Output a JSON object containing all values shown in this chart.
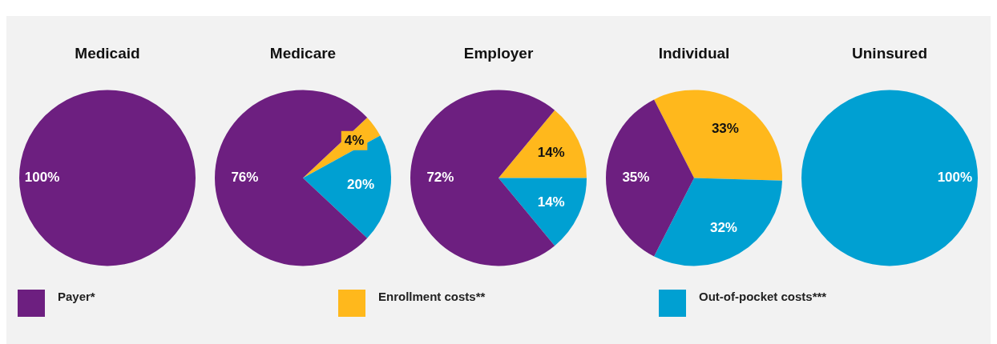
{
  "chart_data": [
    {
      "type": "pie",
      "title": "Medicaid",
      "categories": [
        "Payer*",
        "Enrollment costs**",
        "Out-of-pocket costs***"
      ],
      "values": [
        100,
        0,
        0
      ],
      "colors": [
        "#6d1f80",
        "#ffb81c",
        "#00a0d2"
      ],
      "value_labels": [
        "100%",
        null,
        null
      ],
      "legend": "bottom"
    },
    {
      "type": "pie",
      "title": "Medicare",
      "values": [
        76,
        4,
        20
      ],
      "colors": [
        "#6d1f80",
        "#ffb81c",
        "#00a0d2"
      ],
      "value_labels": [
        "76%",
        "4%",
        "20%"
      ]
    },
    {
      "type": "pie",
      "title": "Employer",
      "values": [
        72,
        14,
        14
      ],
      "colors": [
        "#6d1f80",
        "#ffb81c",
        "#00a0d2"
      ],
      "value_labels": [
        "72%",
        "14%",
        "14%"
      ]
    },
    {
      "type": "pie",
      "title": "Individual",
      "values": [
        35,
        33,
        32
      ],
      "colors": [
        "#6d1f80",
        "#ffb81c",
        "#00a0d2"
      ],
      "value_labels": [
        "35%",
        "33%",
        "32%"
      ]
    },
    {
      "type": "pie",
      "title": "Uninsured",
      "values": [
        0,
        0,
        100
      ],
      "colors": [
        "#6d1f80",
        "#ffb81c",
        "#00a0d2"
      ],
      "value_labels": [
        null,
        null,
        "100%"
      ]
    }
  ]
}
